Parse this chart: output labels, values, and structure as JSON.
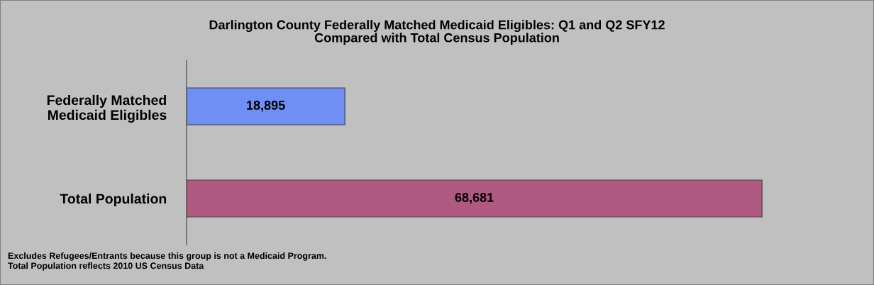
{
  "chart_data": {
    "type": "bar",
    "orientation": "horizontal",
    "title": "Darlington County Federally Matched Medicaid Eligibles: Q1 and Q2 SFY12\nCompared with Total Census Population",
    "categories": [
      "Federally Matched\nMedicaid Eligibles",
      "Total Population"
    ],
    "values": [
      18895,
      68681
    ],
    "colors": [
      "#6f8ff5",
      "#b05a82"
    ],
    "value_labels": [
      "18,895",
      "68,681"
    ],
    "grid": false,
    "legend": false,
    "annotations": [
      "Excludes Refugees/Entrants because this group is not a Medicaid Program.",
      "Total Population reflects 2010 US Census Data"
    ]
  }
}
